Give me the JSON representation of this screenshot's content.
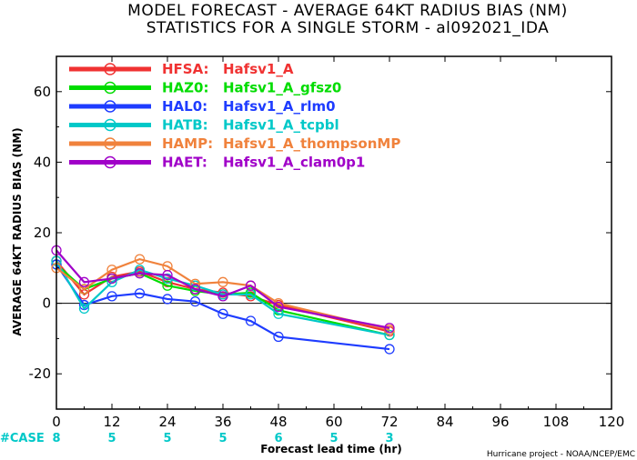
{
  "chart_data": {
    "type": "line",
    "title": "MODEL FORECAST - AVERAGE 64KT RADIUS BIAS (NM)",
    "subtitle": "STATISTICS FOR A SINGLE STORM - al092021_IDA",
    "xlabel": "Forecast lead time (hr)",
    "ylabel": "AVERAGE 64KT RADIUS BIAS (NM)",
    "xlim": [
      0,
      120
    ],
    "ylim": [
      -30,
      70
    ],
    "xticks": [
      0,
      12,
      24,
      36,
      48,
      60,
      72,
      84,
      96,
      108,
      120
    ],
    "yticks": [
      -20,
      0,
      20,
      40,
      60
    ],
    "case_label": "#CASE",
    "case_color": "#00c8c8",
    "cases": [
      {
        "x": 0,
        "n": "8"
      },
      {
        "x": 12,
        "n": "5"
      },
      {
        "x": 24,
        "n": "5"
      },
      {
        "x": 36,
        "n": "5"
      },
      {
        "x": 48,
        "n": "6"
      },
      {
        "x": 60,
        "n": "5"
      },
      {
        "x": 72,
        "n": "3"
      }
    ],
    "legend_position": "top-left",
    "zero_line": true,
    "x": [
      0,
      6,
      12,
      18,
      24,
      30,
      36,
      42,
      48,
      72
    ],
    "series": [
      {
        "code": "HFSA:",
        "name": "Hafsv1_A",
        "color": "#f03232",
        "values": [
          12,
          2.5,
          7.5,
          9,
          6,
          4,
          3,
          2,
          -0.5,
          -8
        ]
      },
      {
        "code": "HAZ0:",
        "name": "Hafsv1_A_gfsz0",
        "color": "#00dc00",
        "values": [
          11,
          4,
          7,
          8.5,
          5,
          3.5,
          2.5,
          3,
          -2,
          -9
        ]
      },
      {
        "code": "HAL0:",
        "name": "Hafsv1_A_rlm0",
        "color": "#1e3cff",
        "values": [
          11,
          -0.5,
          2,
          2.8,
          1.2,
          0.5,
          -3,
          -5,
          -9.5,
          -13
        ]
      },
      {
        "code": "HATB:",
        "name": "Hafsv1_A_tcpbl",
        "color": "#00c8c8",
        "values": [
          12,
          -1.5,
          6,
          9.5,
          7,
          5,
          2.5,
          2.5,
          -3,
          -9
        ]
      },
      {
        "code": "HAMP:",
        "name": "Hafsv1_A_thompsonMP",
        "color": "#f0823c",
        "values": [
          10,
          4,
          9.5,
          12.5,
          10.5,
          5.5,
          6,
          5,
          0,
          -7.5
        ]
      },
      {
        "code": "HAET:",
        "name": "Hafsv1_A_clam0p1",
        "color": "#a000c8",
        "values": [
          15,
          6,
          7,
          8.5,
          8,
          4,
          2,
          5,
          -1,
          -7
        ]
      }
    ]
  },
  "credit": "Hurricane project - NOAA/NCEP/EMC"
}
